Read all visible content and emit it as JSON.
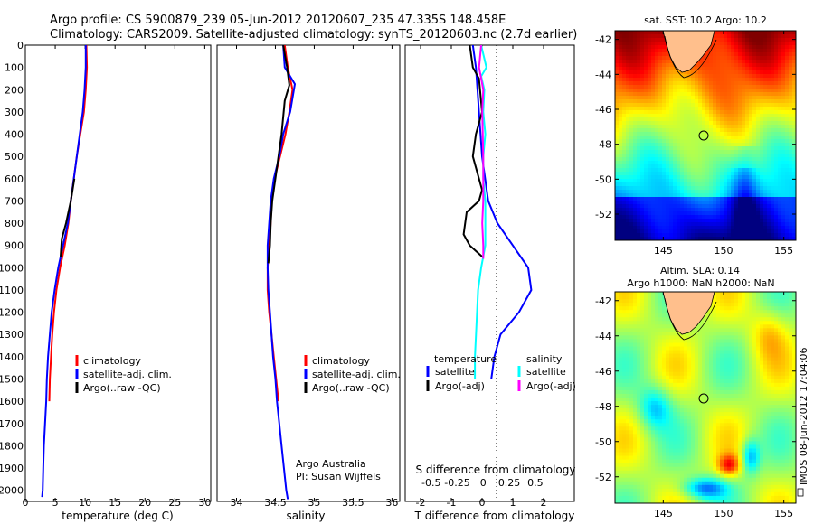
{
  "title_line1": "Argo profile: CS 5900879_239 05-Jun-2012 20120607_235 47.335S 148.458E",
  "title_line2": "Climatology: CARS2009. Satellite-adjusted climatology: synTS_20120603.nc (2.7d earlier)",
  "colors": {
    "climatology": "#ff0000",
    "satellite": "#0000ff",
    "argo": "#000000",
    "sal_satellite": "#00ffff",
    "sal_argo": "#ff00ff"
  },
  "depth_ticks": [
    "0",
    "100",
    "200",
    "300",
    "400",
    "500",
    "600",
    "700",
    "800",
    "900",
    "1000",
    "1100",
    "1200",
    "1300",
    "1400",
    "1500",
    "1600",
    "1700",
    "1800",
    "1900",
    "2000"
  ],
  "legend_labels": {
    "climatology": "climatology",
    "satellite": "satellite-adj. clim.",
    "argo": "Argo(..raw -QC)"
  },
  "diff_legend": {
    "temp_header": "temperature",
    "sal_header": "salinity",
    "satellite": "satellite",
    "argo": "Argo(-adj)"
  },
  "argo_credit_1": "Argo Australia",
  "argo_credit_2": "PI: Susan Wijffels",
  "sst_title": "sat. SST: 10.2  Argo: 10.2",
  "sla_title_1": "Altim. SLA: 0.14",
  "sla_title_2": "Argo h1000: NaN h2000: NaN",
  "imos_stamp": "IMOS 08-Jun-2012 17:04:06",
  "map_lat_ticks": [
    "-42",
    "-44",
    "-46",
    "-48",
    "-50",
    "-52"
  ],
  "map_lon_ticks": [
    "145",
    "150",
    "155"
  ],
  "chart_data": [
    {
      "type": "line",
      "name": "temperature",
      "xlabel": "temperature (deg C)",
      "ylabel": "",
      "xlim": [
        0,
        31
      ],
      "ylim": [
        0,
        2050
      ],
      "x_ticks": [
        "0",
        "5",
        "10",
        "15",
        "20",
        "25",
        "30"
      ],
      "series": [
        {
          "name": "climatology",
          "x": [
            10.2,
            10.3,
            10.1,
            9.8,
            9.2,
            8.6,
            8.1,
            7.6,
            7.2,
            6.6,
            5.8,
            5.2,
            4.8,
            4.5,
            4.3,
            4.1,
            4.0
          ],
          "y": [
            0,
            100,
            200,
            300,
            400,
            500,
            600,
            700,
            800,
            900,
            1000,
            1100,
            1200,
            1300,
            1400,
            1500,
            1600
          ]
        },
        {
          "name": "satellite-adj. clim.",
          "x": [
            10.1,
            10.1,
            9.9,
            9.6,
            9.1,
            8.6,
            8.1,
            7.6,
            7.1,
            6.3,
            5.5,
            4.9,
            4.4,
            4.1,
            3.8,
            3.6,
            3.5,
            3.3,
            3.1,
            3.0,
            2.9,
            2.8
          ],
          "y": [
            0,
            100,
            200,
            300,
            400,
            500,
            600,
            700,
            800,
            900,
            1000,
            1100,
            1200,
            1300,
            1400,
            1500,
            1600,
            1700,
            1800,
            1900,
            2000,
            2030
          ]
        },
        {
          "name": "Argo(..raw -QC)",
          "x": [
            8.2,
            7.6,
            6.8,
            6.1,
            5.9,
            6.1
          ],
          "y": [
            600,
            700,
            800,
            870,
            950,
            880
          ]
        }
      ]
    },
    {
      "type": "line",
      "name": "salinity",
      "xlabel": "salinity",
      "ylabel": "",
      "xlim": [
        33.75,
        36.1
      ],
      "ylim": [
        0,
        2050
      ],
      "x_ticks": [
        "34",
        "34.5",
        "35",
        "35.5",
        "36"
      ],
      "series": [
        {
          "name": "climatology",
          "x": [
            34.62,
            34.66,
            34.72,
            34.68,
            34.63,
            34.56,
            34.49,
            34.45,
            34.44,
            34.42,
            34.4,
            34.4,
            34.42,
            34.45,
            34.48,
            34.51,
            34.54
          ],
          "y": [
            0,
            100,
            200,
            300,
            400,
            500,
            600,
            700,
            800,
            900,
            1000,
            1100,
            1200,
            1300,
            1400,
            1500,
            1600
          ]
        },
        {
          "name": "satellite-adj. clim.",
          "x": [
            34.6,
            34.62,
            34.75,
            34.69,
            34.6,
            34.55,
            34.48,
            34.44,
            34.42,
            34.4,
            34.4,
            34.41,
            34.43,
            34.45,
            34.47,
            34.5,
            34.52,
            34.55,
            34.58,
            34.61,
            34.64,
            34.66
          ],
          "y": [
            0,
            100,
            175,
            300,
            400,
            500,
            600,
            700,
            800,
            900,
            1000,
            1100,
            1200,
            1300,
            1400,
            1500,
            1600,
            1700,
            1800,
            1900,
            2000,
            2040
          ]
        },
        {
          "name": "Argo(..raw -QC)",
          "x": [
            34.6,
            34.65,
            34.68,
            34.62,
            34.58,
            34.52,
            34.46,
            34.44,
            34.43,
            34.41
          ],
          "y": [
            0,
            100,
            180,
            250,
            400,
            550,
            700,
            800,
            900,
            980
          ]
        }
      ]
    },
    {
      "type": "line",
      "name": "differences",
      "xlabel": "T difference from climatology",
      "ylabel": "",
      "xlim": [
        -2.5,
        3
      ],
      "ylim": [
        0,
        2050
      ],
      "x_ticks": [
        "-2",
        "-1",
        "0",
        "1",
        "2"
      ],
      "x2label": "S difference from climatology",
      "x2lim": [
        -0.75,
        0.875
      ],
      "x2_ticks": [
        "-0.5",
        "-0.25",
        "0",
        "0.25",
        "0.5"
      ],
      "series": [
        {
          "name": "temperature satellite",
          "x": [
            -0.3,
            -0.2,
            -0.15,
            -0.1,
            -0.05,
            0.0,
            0.1,
            0.2,
            0.5,
            1.0,
            1.5,
            1.6,
            1.2,
            0.6,
            0.4,
            0.3
          ],
          "y": [
            0,
            100,
            200,
            300,
            400,
            500,
            600,
            700,
            800,
            900,
            1000,
            1100,
            1200,
            1300,
            1400,
            1500
          ]
        },
        {
          "name": "temperature Argo(-adj)",
          "x": [
            -0.4,
            -0.3,
            -0.1,
            0,
            -0.2,
            -0.3,
            -0.1,
            0,
            -0.1,
            -0.5,
            -0.6,
            -0.4,
            0
          ],
          "y": [
            0,
            100,
            150,
            300,
            400,
            500,
            600,
            650,
            700,
            750,
            850,
            900,
            950
          ]
        },
        {
          "name": "salinity satellite",
          "x": [
            -0.02,
            0.03,
            -0.02,
            0.01,
            0.0,
            0.02,
            0.0,
            0.0,
            0.02,
            0.02,
            0.02,
            -0.02,
            -0.05,
            -0.07,
            -0.08,
            -0.08
          ],
          "y": [
            0,
            100,
            140,
            200,
            300,
            400,
            500,
            600,
            700,
            800,
            900,
            1000,
            1100,
            1300,
            1400,
            1500
          ]
        },
        {
          "name": "salinity Argo(-adj)",
          "x": [
            -0.02,
            -0.04,
            0.0,
            -0.01,
            0.0,
            0.0,
            -0.01,
            0.0,
            0.0
          ],
          "y": [
            0,
            100,
            200,
            300,
            500,
            700,
            800,
            900,
            960
          ]
        }
      ]
    },
    {
      "type": "heatmap",
      "name": "sat_sst_map",
      "title": "sat. SST: 10.2  Argo: 10.2",
      "xlim": [
        141,
        156
      ],
      "ylim": [
        -53.5,
        -41.5
      ],
      "x_ticks": [
        "145",
        "150",
        "155"
      ],
      "y_ticks": [
        "-42",
        "-44",
        "-46",
        "-48",
        "-50",
        "-52"
      ],
      "argo_position": [
        148.458,
        -47.335
      ]
    },
    {
      "type": "heatmap",
      "name": "altim_sla_map",
      "title": "Altim. SLA: 0.14",
      "xlim": [
        141,
        156
      ],
      "ylim": [
        -53.5,
        -41.5
      ],
      "x_ticks": [
        "145",
        "150",
        "155"
      ],
      "y_ticks": [
        "-42",
        "-44",
        "-46",
        "-48",
        "-50",
        "-52"
      ],
      "argo_position": [
        148.458,
        -47.335
      ]
    }
  ]
}
